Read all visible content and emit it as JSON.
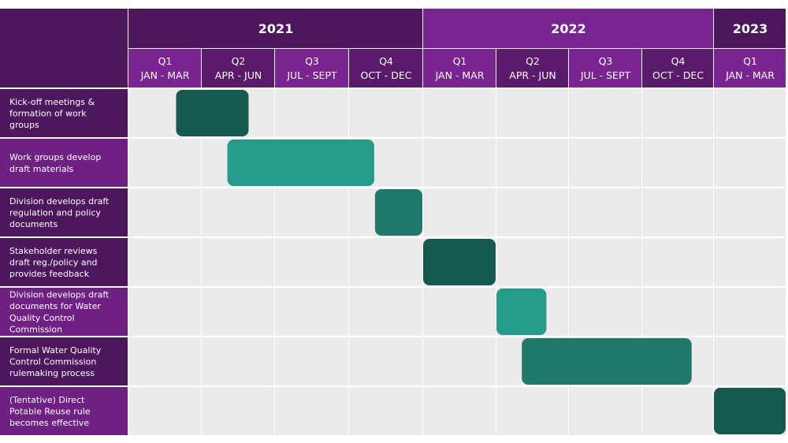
{
  "colors": {
    "year_dark": "#4d175e",
    "year_light": "#7a2491",
    "quarter_dark": "#5a1a6c",
    "quarter_light": "#7a2491",
    "task_dark": "#4d175e",
    "task_light": "#6f2183",
    "cell_bg": "#ebebeb",
    "bar_dark": "#155a4f",
    "bar_teal": "#269b8c",
    "bar_mid": "#21796c"
  },
  "chart_data": {
    "type": "gantt",
    "years": [
      {
        "label": "2021",
        "span": 4,
        "style": "dark"
      },
      {
        "label": "2022",
        "span": 4,
        "style": "light"
      },
      {
        "label": "2023",
        "span": 1,
        "style": "dark"
      }
    ],
    "quarters": [
      {
        "q": "Q1",
        "months": "JAN - MAR",
        "style": "light"
      },
      {
        "q": "Q2",
        "months": "APR - JUN",
        "style": "dark"
      },
      {
        "q": "Q3",
        "months": "JUL - SEPT",
        "style": "light"
      },
      {
        "q": "Q4",
        "months": "OCT - DEC",
        "style": "dark"
      },
      {
        "q": "Q1",
        "months": "JAN - MAR",
        "style": "light"
      },
      {
        "q": "Q2",
        "months": "APR - JUN",
        "style": "dark"
      },
      {
        "q": "Q3",
        "months": "JUL - SEPT",
        "style": "light"
      },
      {
        "q": "Q4",
        "months": "OCT - DEC",
        "style": "dark"
      },
      {
        "q": "Q1",
        "months": "JAN - MAR",
        "style": "light"
      }
    ],
    "tasks": [
      {
        "lines": [
          "Kick-off meetings &",
          "formation of work",
          "groups"
        ],
        "start": 0.65,
        "end": 1.65,
        "color": "bar_dark",
        "style": "dark"
      },
      {
        "lines": [
          "Work groups develop",
          "draft materials"
        ],
        "start": 1.35,
        "end": 3.35,
        "color": "bar_teal",
        "style": "light"
      },
      {
        "lines": [
          "Division develops draft",
          "regulation and policy",
          "documents"
        ],
        "start": 3.35,
        "end": 4.0,
        "color": "bar_mid",
        "style": "dark"
      },
      {
        "lines": [
          "Stakeholder reviews",
          "draft reg./policy and",
          "provides feedback"
        ],
        "start": 4.0,
        "end": 5.0,
        "color": "bar_dark",
        "style": "dark"
      },
      {
        "lines": [
          "Division develops draft",
          "documents for Water",
          "Quality Control",
          "Commission"
        ],
        "start": 5.0,
        "end": 5.7,
        "color": "bar_teal",
        "style": "light"
      },
      {
        "lines": [
          "Formal Water Quality",
          "Control Commission",
          "rulemaking process"
        ],
        "start": 5.35,
        "end": 7.7,
        "color": "bar_mid",
        "style": "dark"
      },
      {
        "lines": [
          "(Tentative) Direct",
          "Potable Reuse rule",
          "becomes effective"
        ],
        "start": 8.0,
        "end": 9.0,
        "color": "bar_dark",
        "style": "light"
      }
    ]
  }
}
